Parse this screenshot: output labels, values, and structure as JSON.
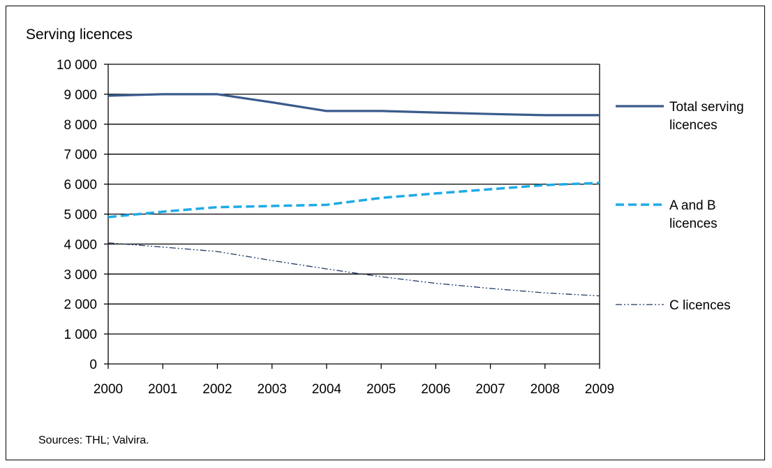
{
  "chart_data": {
    "type": "line",
    "ylabel": "Serving licences",
    "xlabel": "",
    "categories": [
      "2000",
      "2001",
      "2002",
      "2003",
      "2004",
      "2005",
      "2006",
      "2007",
      "2008",
      "2009"
    ],
    "ylim": [
      0,
      10000
    ],
    "yticks": [
      0,
      1000,
      2000,
      3000,
      4000,
      5000,
      6000,
      7000,
      8000,
      9000,
      10000
    ],
    "ytick_labels": [
      "0",
      "1 000",
      "2 000",
      "3 000",
      "4 000",
      "5 000",
      "6 000",
      "7 000",
      "8 000",
      "9 000",
      "10 000"
    ],
    "grid": "horizontal",
    "legend_position": "right",
    "series": [
      {
        "name": "Total serving licences",
        "legend_lines": [
          "Total serving",
          "licences"
        ],
        "values": [
          8950,
          9000,
          9000,
          8730,
          8440,
          8440,
          8390,
          8340,
          8300,
          8300
        ],
        "color": "#3a5b8c",
        "style": "solid"
      },
      {
        "name": "A and B licences",
        "legend_lines": [
          "A and B",
          "licences"
        ],
        "values": [
          4900,
          5080,
          5230,
          5270,
          5310,
          5540,
          5690,
          5830,
          5970,
          6040
        ],
        "color": "#1eaae6",
        "style": "dashed"
      },
      {
        "name": "C licences",
        "legend_lines": [
          "C licences"
        ],
        "values": [
          4040,
          3900,
          3750,
          3450,
          3170,
          2910,
          2690,
          2520,
          2370,
          2270
        ],
        "color": "#1f3864",
        "style": "dash-dot-dot"
      }
    ]
  },
  "footer": {
    "sources": "Sources: THL; Valvira."
  }
}
